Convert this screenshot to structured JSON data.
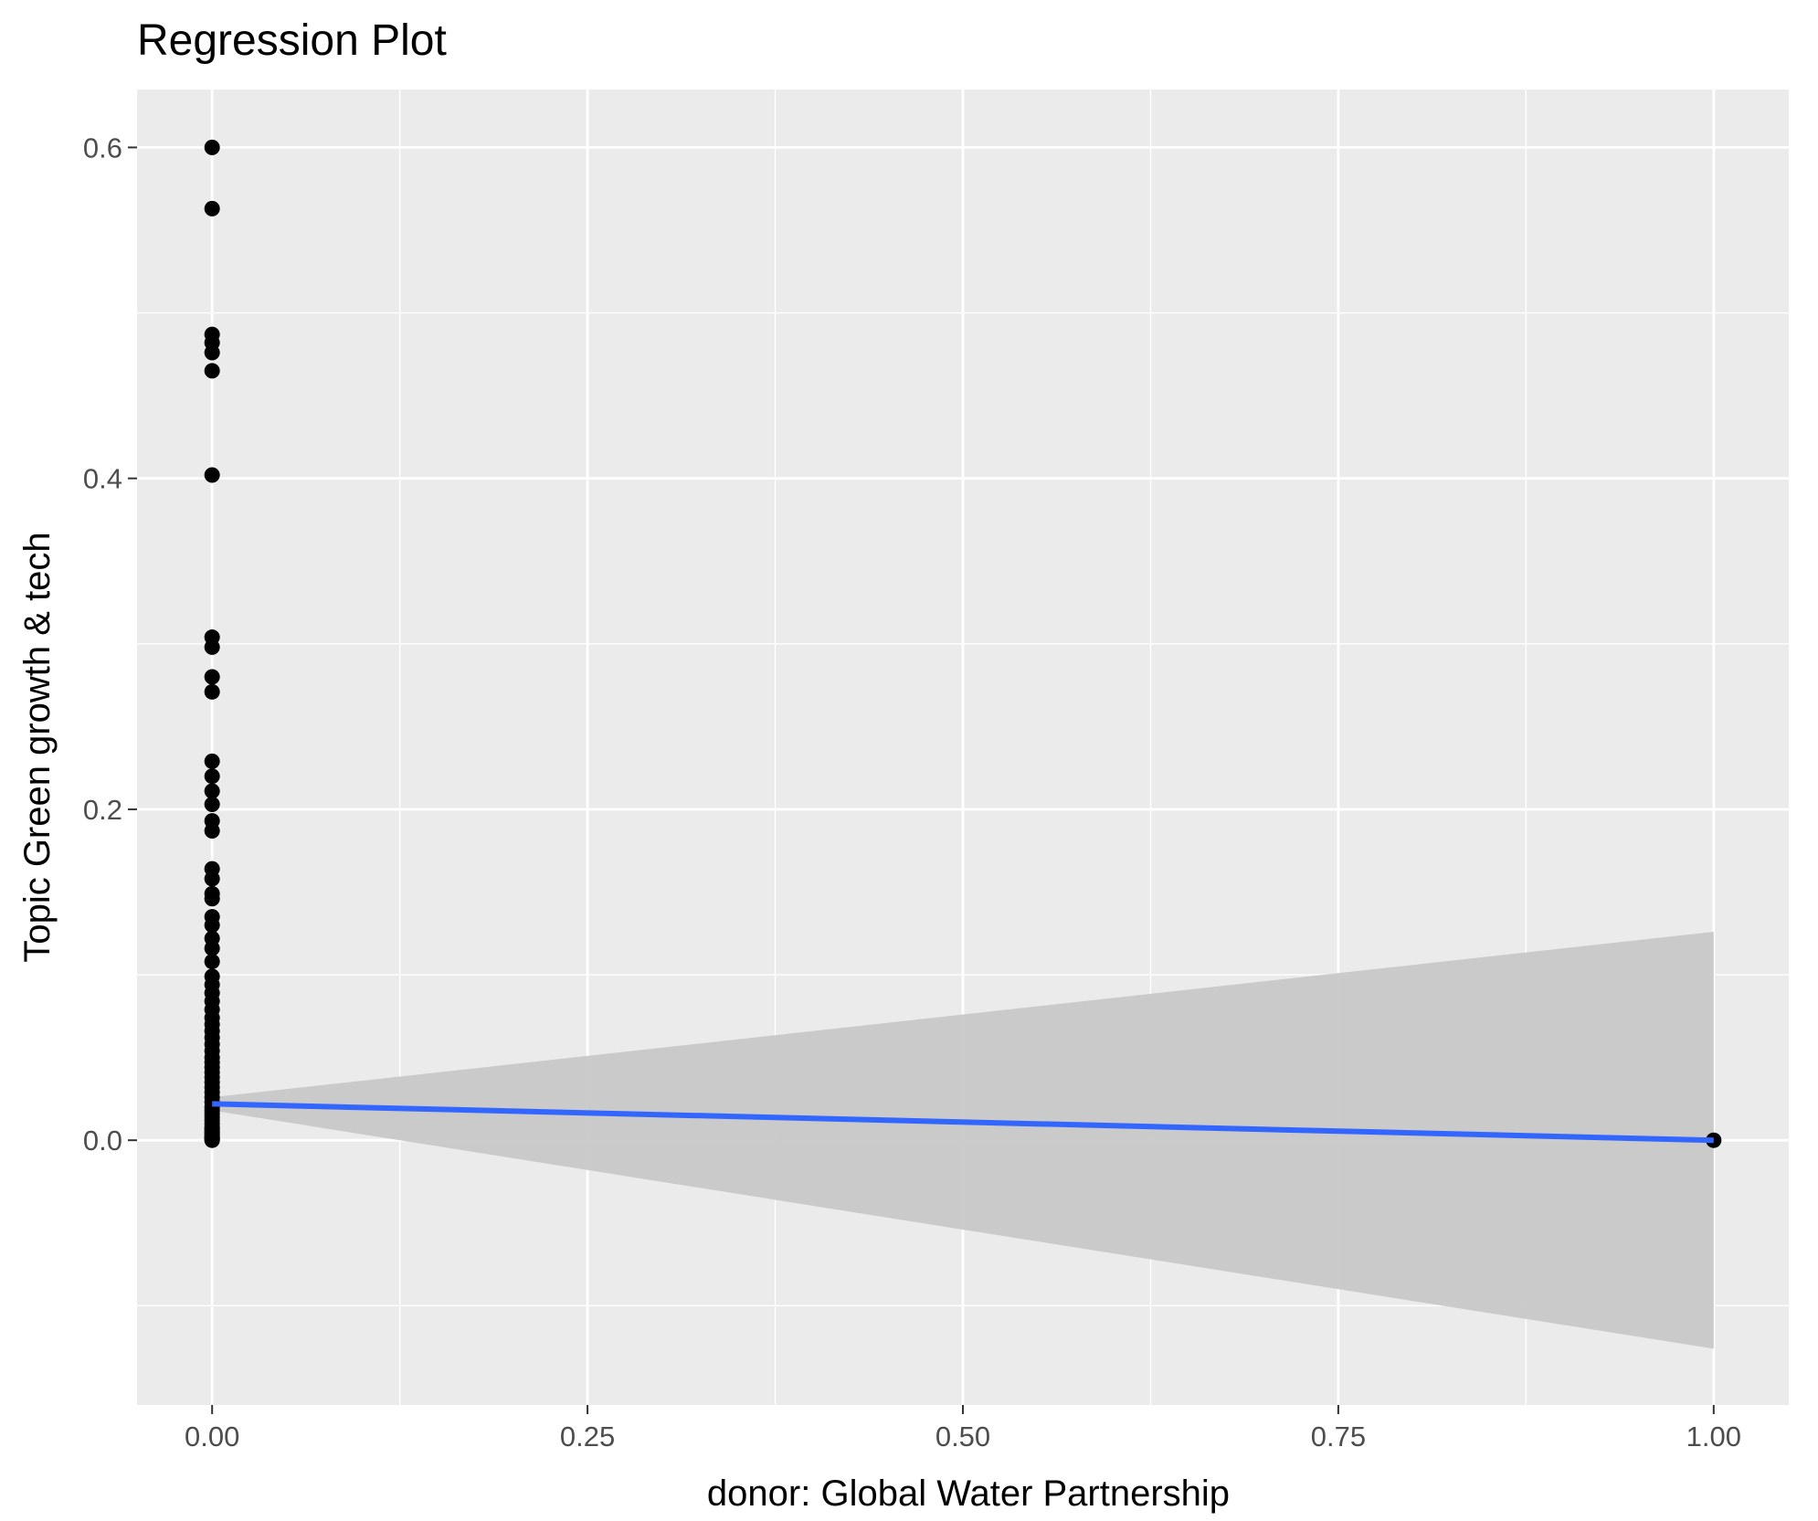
{
  "chart_data": {
    "type": "scatter",
    "title": "Regression Plot",
    "xlabel": "donor: Global Water Partnership",
    "ylabel": "Topic Green growth & tech",
    "xlim": [
      -0.05,
      1.05
    ],
    "ylim": [
      -0.16,
      0.635
    ],
    "x_ticks": [
      0.0,
      0.25,
      0.5,
      0.75,
      1.0
    ],
    "x_tick_labels": [
      "0.00",
      "0.25",
      "0.50",
      "0.75",
      "1.00"
    ],
    "y_ticks": [
      0.0,
      0.2,
      0.4,
      0.6
    ],
    "y_tick_labels": [
      "0.0",
      "0.2",
      "0.4",
      "0.6"
    ],
    "grid": true,
    "legend": "none",
    "colors": {
      "panel": "#ebebeb",
      "grid": "#ffffff",
      "points": "#000000",
      "fit_line": "#3366ff",
      "ribbon": "#c8c8c8"
    },
    "series": [
      {
        "type": "scatter",
        "x": [
          0,
          0,
          0,
          0,
          0,
          0,
          0,
          0,
          0,
          0,
          0,
          0,
          0,
          0,
          0,
          0,
          0,
          0,
          0,
          0,
          0,
          0,
          0,
          0,
          0,
          0,
          0,
          0,
          0,
          0,
          0,
          0,
          0,
          0,
          0,
          0,
          0,
          0,
          0,
          0,
          0,
          0,
          0,
          0,
          0,
          0,
          0,
          0,
          0,
          0,
          0,
          0,
          0,
          0,
          0,
          0,
          0,
          0,
          0,
          0,
          0,
          0,
          0,
          0,
          1
        ],
        "y": [
          0.6,
          0.563,
          0.487,
          0.482,
          0.476,
          0.465,
          0.402,
          0.304,
          0.298,
          0.28,
          0.271,
          0.229,
          0.22,
          0.211,
          0.203,
          0.193,
          0.187,
          0.164,
          0.158,
          0.149,
          0.146,
          0.135,
          0.13,
          0.122,
          0.116,
          0.108,
          0.099,
          0.094,
          0.089,
          0.084,
          0.079,
          0.074,
          0.07,
          0.066,
          0.062,
          0.058,
          0.054,
          0.05,
          0.047,
          0.044,
          0.041,
          0.038,
          0.035,
          0.032,
          0.029,
          0.026,
          0.023,
          0.02,
          0.018,
          0.016,
          0.014,
          0.012,
          0.01,
          0.008,
          0.007,
          0.006,
          0.005,
          0.004,
          0.003,
          0.002,
          0.0015,
          0.001,
          0.0005,
          0.0,
          0.0
        ]
      },
      {
        "type": "line",
        "x": [
          0,
          1
        ],
        "y": [
          0.022,
          0.0
        ]
      },
      {
        "type": "area",
        "x": [
          0,
          1
        ],
        "lower": [
          0.018,
          -0.126
        ],
        "upper": [
          0.026,
          0.126
        ]
      }
    ]
  }
}
